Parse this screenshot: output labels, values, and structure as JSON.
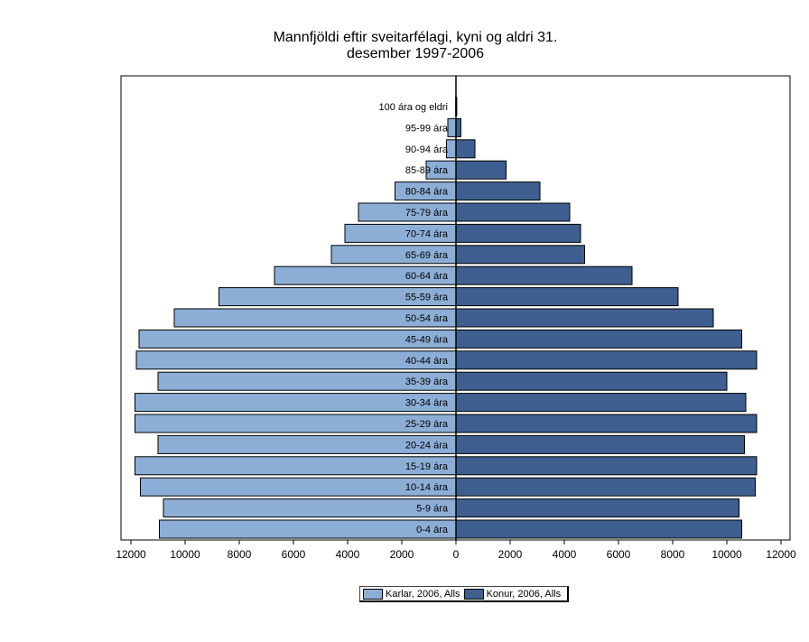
{
  "chart_data": {
    "type": "bar",
    "orientation": "horizontal-pyramid",
    "title": "Mannfjöldi eftir sveitarfélagi, kyni og aldri 31. desember 1997-2006",
    "title_lines": [
      "Mannfjöldi eftir sveitarfélagi, kyni og aldri 31.",
      "desember 1997-2006"
    ],
    "categories": [
      "100 ára og eldri",
      "95-99 ára",
      "90-94 ára",
      "85-89 ára",
      "80-84 ára",
      "75-79 ára",
      "70-74 ára",
      "65-69 ára",
      "60-64 ára",
      "55-59 ára",
      "50-54 ára",
      "45-49 ára",
      "40-44 ára",
      "35-39 ára",
      "30-34 ára",
      "25-29 ára",
      "20-24 ára",
      "15-19 ára",
      "10-14 ára",
      "5-9 ára",
      "0-4 ára"
    ],
    "series": [
      {
        "name": "Karlar, 2006, Alls",
        "color": "#8caed6",
        "values": [
          10,
          300,
          350,
          1100,
          2250,
          3600,
          4100,
          4600,
          6700,
          8750,
          10400,
          11700,
          11800,
          11000,
          11850,
          11850,
          11000,
          11850,
          11650,
          10800,
          10950
        ]
      },
      {
        "name": "Konur, 2006, Alls",
        "color": "#3e5f8f",
        "values": [
          30,
          180,
          700,
          1850,
          3100,
          4200,
          4600,
          4750,
          6500,
          8200,
          9500,
          10550,
          11100,
          10000,
          10700,
          11100,
          10650,
          11100,
          11050,
          10450,
          10550
        ]
      }
    ],
    "xlim": [
      -13000,
      13000
    ],
    "xticks": [
      -12000,
      -10000,
      -8000,
      -6000,
      -4000,
      -2000,
      0,
      2000,
      4000,
      6000,
      8000,
      10000,
      12000
    ],
    "xtick_labels": [
      "12000",
      "10000",
      "8000",
      "6000",
      "4000",
      "2000",
      "0",
      "2000",
      "4000",
      "6000",
      "8000",
      "10000",
      "12000"
    ],
    "xlabel": "",
    "ylabel": "",
    "grid": false,
    "legend_position": "bottom-center"
  },
  "legend": {
    "male_label": "Karlar, 2006, Alls",
    "female_label": "Konur, 2006, Alls"
  }
}
